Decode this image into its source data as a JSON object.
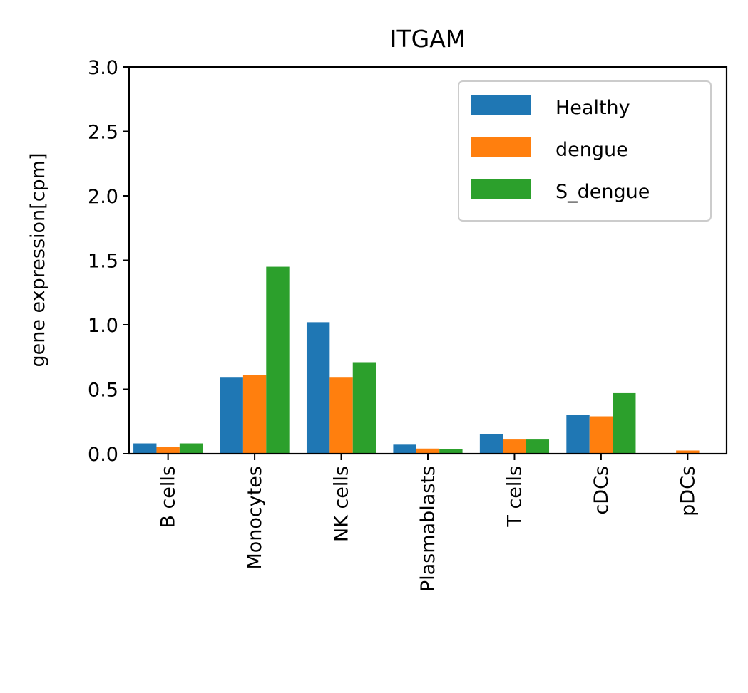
{
  "chart_data": {
    "type": "bar",
    "title": "ITGAM",
    "xlabel": "",
    "ylabel": "gene expression[cpm]",
    "categories": [
      "B cells",
      "Monocytes",
      "NK cells",
      "Plasmablasts",
      "T cells",
      "cDCs",
      "pDCs"
    ],
    "series": [
      {
        "name": "Healthy",
        "color": "#1f77b4",
        "values": [
          0.08,
          0.59,
          1.02,
          0.07,
          0.15,
          0.3,
          0.0
        ]
      },
      {
        "name": "dengue",
        "color": "#ff7f0e",
        "values": [
          0.05,
          0.61,
          0.59,
          0.04,
          0.11,
          0.29,
          0.025
        ]
      },
      {
        "name": "S_dengue",
        "color": "#2ca02c",
        "values": [
          0.08,
          1.45,
          0.71,
          0.035,
          0.11,
          0.47,
          0.0
        ]
      }
    ],
    "ylim": [
      0,
      3.0
    ],
    "yticks": [
      "0.0",
      "0.5",
      "1.0",
      "1.5",
      "2.0",
      "2.5",
      "3.0"
    ],
    "grid": false,
    "legend_position": "top-right"
  }
}
